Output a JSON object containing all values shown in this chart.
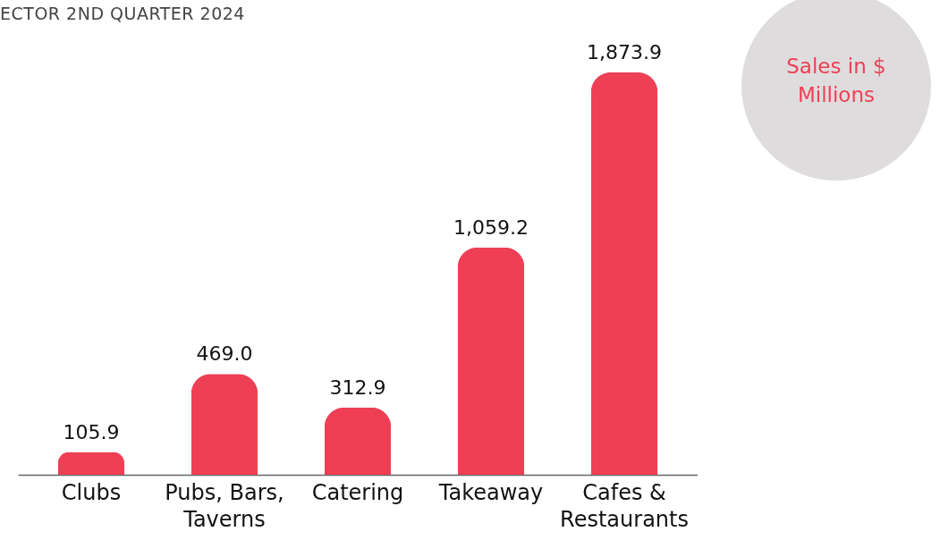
{
  "chart_data": {
    "type": "bar",
    "title": "ECTOR 2ND QUARTER 2024",
    "categories": [
      "Clubs",
      "Pubs, Bars, Taverns",
      "Catering",
      "Takeaway",
      "Cafes & Restaurants"
    ],
    "values": [
      105.9,
      469.0,
      312.9,
      1059.2,
      1873.9
    ],
    "value_labels": [
      "105.9",
      "469.0",
      "312.9",
      "1,059.2",
      "1,873.9"
    ],
    "color": "#ee3f55",
    "annotations": [
      "Sales in $ Millions"
    ]
  }
}
